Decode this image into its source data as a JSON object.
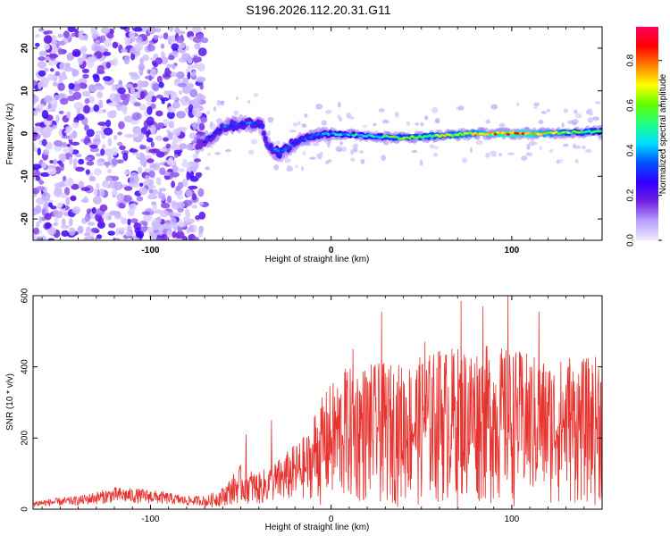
{
  "title": "S196.2026.112.20.31.G11",
  "colors": {
    "snr_line": "#e8322e",
    "axis": "#000000",
    "background": "#ffffff"
  },
  "chart_data": [
    {
      "type": "heatmap",
      "xlabel": "Height of straight line (km)",
      "ylabel": "Frequency (Hz)",
      "xlim": [
        -165,
        150
      ],
      "ylim": [
        -25,
        25
      ],
      "xticks": [
        -100,
        0,
        100
      ],
      "yticks": [
        -20,
        -10,
        0,
        10,
        20
      ],
      "colorbar": {
        "label": "Normalized spectral amplitude",
        "range": [
          0,
          0.95
        ],
        "ticks": [
          "0.0",
          "0.2",
          "0.4",
          "0.6",
          "0.8"
        ],
        "tick_values": [
          0.0,
          0.2,
          0.4,
          0.6,
          0.8
        ],
        "colormap": [
          "#f0e8ff",
          "#b8a0ff",
          "#7020e0",
          "#3000ff",
          "#0050ff",
          "#00e0ff",
          "#20ff80",
          "#60ff00",
          "#ffff00",
          "#ff8000",
          "#ff0000",
          "#ff0060"
        ]
      },
      "features": {
        "noise_region_x": [
          -165,
          -70
        ],
        "noise_level": 0.18,
        "signal_ridge": [
          {
            "x": -72,
            "f": -2.5,
            "a": 0.3
          },
          {
            "x": -60,
            "f": 1.5,
            "a": 0.35
          },
          {
            "x": -45,
            "f": 2.5,
            "a": 0.38
          },
          {
            "x": -38,
            "f": 2.0,
            "a": 0.35
          },
          {
            "x": -35,
            "f": -3.0,
            "a": 0.32
          },
          {
            "x": -28,
            "f": -4.5,
            "a": 0.42
          },
          {
            "x": -20,
            "f": -2.0,
            "a": 0.35
          },
          {
            "x": -10,
            "f": -0.5,
            "a": 0.4
          },
          {
            "x": 0,
            "f": 0.0,
            "a": 0.45
          },
          {
            "x": 20,
            "f": -0.5,
            "a": 0.5
          },
          {
            "x": 40,
            "f": -1.0,
            "a": 0.6
          },
          {
            "x": 60,
            "f": -0.5,
            "a": 0.65
          },
          {
            "x": 80,
            "f": 0.0,
            "a": 0.7
          },
          {
            "x": 100,
            "f": 0.0,
            "a": 0.9
          },
          {
            "x": 115,
            "f": 0.0,
            "a": 0.75
          },
          {
            "x": 135,
            "f": 0.3,
            "a": 0.6
          },
          {
            "x": 150,
            "f": 0.5,
            "a": 0.55
          }
        ]
      }
    },
    {
      "type": "line",
      "xlabel": "Height of straight line (km)",
      "ylabel": "SNR (10 * v/v)",
      "xlim": [
        -165,
        150
      ],
      "ylim": [
        0,
        600
      ],
      "xticks": [
        -100,
        0,
        100
      ],
      "yticks": [
        0,
        200,
        400,
        600
      ],
      "envelope": [
        {
          "x": -165,
          "y": 20
        },
        {
          "x": -140,
          "y": 30
        },
        {
          "x": -120,
          "y": 50
        },
        {
          "x": -100,
          "y": 45
        },
        {
          "x": -80,
          "y": 30
        },
        {
          "x": -70,
          "y": 30
        },
        {
          "x": -60,
          "y": 55
        },
        {
          "x": -50,
          "y": 110
        },
        {
          "x": -40,
          "y": 90
        },
        {
          "x": -30,
          "y": 120
        },
        {
          "x": -20,
          "y": 160
        },
        {
          "x": -10,
          "y": 200
        },
        {
          "x": 0,
          "y": 260
        },
        {
          "x": 10,
          "y": 290
        },
        {
          "x": 20,
          "y": 300
        },
        {
          "x": 40,
          "y": 300
        },
        {
          "x": 60,
          "y": 330
        },
        {
          "x": 80,
          "y": 340
        },
        {
          "x": 100,
          "y": 330
        },
        {
          "x": 120,
          "y": 310
        },
        {
          "x": 140,
          "y": 310
        },
        {
          "x": 150,
          "y": 320
        }
      ],
      "peaks": [
        {
          "x": -47,
          "y": 210
        },
        {
          "x": -33,
          "y": 250
        },
        {
          "x": 8,
          "y": 395
        },
        {
          "x": 12,
          "y": 450
        },
        {
          "x": 28,
          "y": 555
        },
        {
          "x": 52,
          "y": 470
        },
        {
          "x": 60,
          "y": 445
        },
        {
          "x": 72,
          "y": 585
        },
        {
          "x": 84,
          "y": 570
        },
        {
          "x": 98,
          "y": 600
        },
        {
          "x": 115,
          "y": 555
        },
        {
          "x": 132,
          "y": 425
        },
        {
          "x": 148,
          "y": 395
        }
      ]
    }
  ]
}
